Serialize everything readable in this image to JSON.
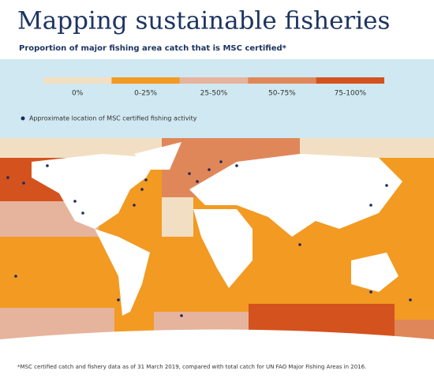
{
  "header": {
    "title": "Mapping sustainable fisheries",
    "subtitle": "Proportion of major fishing area catch that is MSC certified*"
  },
  "legend": {
    "items": [
      {
        "label": "0%",
        "color": "#f2dfc3"
      },
      {
        "label": "0-25%",
        "color": "#f29a22"
      },
      {
        "label": "25-50%",
        "color": "#e6b39c"
      },
      {
        "label": "50-75%",
        "color": "#e0875a"
      },
      {
        "label": "75-100%",
        "color": "#d4521e"
      }
    ],
    "dot_note": "Approximate location of MSC certified fishing activity"
  },
  "footnote": "*MSC certified catch and fishery data as of 31 March 2019, compared with total catch for UN FAO Major Fishing Areas in 2016."
}
